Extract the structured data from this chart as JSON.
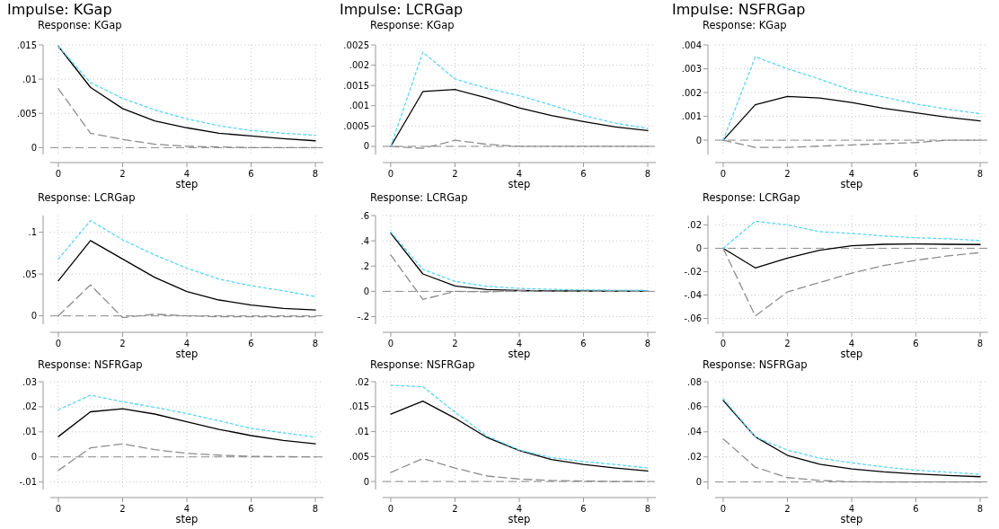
{
  "chart_data": [
    {
      "type": "line",
      "title": "Impulse: KGap",
      "subtitle": "Response: KGap",
      "xlabel": "step",
      "x": [
        0,
        1,
        2,
        3,
        4,
        5,
        6,
        7,
        8
      ],
      "xlim": [
        -0.25,
        8.25
      ],
      "xticks": [
        0,
        2,
        4,
        6,
        8
      ],
      "ylim": [
        -0.001,
        0.015
      ],
      "yticks": [
        {
          "value": 0,
          "label": "0"
        },
        {
          "value": 0.005,
          "label": ".005"
        },
        {
          "value": 0.01,
          "label": ".01"
        },
        {
          "value": 0.015,
          "label": ".015"
        }
      ],
      "grid": true,
      "marker": "none",
      "ref_lines": [
        {
          "axis": "y",
          "value": 0,
          "color": "#8c8c8c",
          "line_style": "dashed"
        }
      ],
      "series": [
        {
          "color": "#000000",
          "line_style": "solid",
          "values": [
            0.0148,
            0.0088,
            0.0057,
            0.0039,
            0.0029,
            0.0021,
            0.0017,
            0.0013,
            0.001
          ]
        },
        {
          "color": "#8c8c8c",
          "line_style": "dashed",
          "values": [
            0.0086,
            0.0021,
            0.0012,
            0.0005,
            0.0002,
            0.0001,
            0,
            0,
            0
          ]
        },
        {
          "color": "#5cd6f2",
          "line_style": "dotted",
          "values": [
            0.0148,
            0.0095,
            0.0072,
            0.0055,
            0.0042,
            0.0032,
            0.0025,
            0.0021,
            0.0018
          ]
        }
      ]
    },
    {
      "type": "line",
      "title": "Impulse: LCRGap",
      "subtitle": "Response: KGap",
      "xlabel": "step",
      "x": [
        0,
        1,
        2,
        3,
        4,
        5,
        6,
        7,
        8
      ],
      "xlim": [
        -0.25,
        8.25
      ],
      "xticks": [
        0,
        2,
        4,
        6,
        8
      ],
      "ylim": [
        -0.0002,
        0.0025
      ],
      "yticks": [
        {
          "value": 0,
          "label": "0"
        },
        {
          "value": 0.0005,
          "label": ".0005"
        },
        {
          "value": 0.001,
          "label": ".001"
        },
        {
          "value": 0.0015,
          "label": ".0015"
        },
        {
          "value": 0.002,
          "label": ".002"
        },
        {
          "value": 0.0025,
          "label": ".0025"
        }
      ],
      "grid": true,
      "marker": "none",
      "ref_lines": [
        {
          "axis": "y",
          "value": 0,
          "color": "#8c8c8c",
          "line_style": "dashed"
        }
      ],
      "series": [
        {
          "color": "#000000",
          "line_style": "solid",
          "values": [
            0,
            0.00135,
            0.0014,
            0.00119,
            0.00095,
            0.00076,
            0.00061,
            0.00048,
            0.00039
          ]
        },
        {
          "color": "#8c8c8c",
          "line_style": "dashed",
          "values": [
            0,
            -5e-05,
            0.00015,
            5e-05,
            0,
            0,
            0,
            0,
            0
          ]
        },
        {
          "color": "#5cd6f2",
          "line_style": "dotted",
          "values": [
            0,
            0.00232,
            0.00166,
            0.00143,
            0.00125,
            0.00102,
            0.00076,
            0.00057,
            0.00044
          ]
        }
      ]
    },
    {
      "type": "line",
      "title": "Impulse: NSFRGap",
      "subtitle": "Response: KGap",
      "xlabel": "step",
      "x": [
        0,
        1,
        2,
        3,
        4,
        5,
        6,
        7,
        8
      ],
      "xlim": [
        -0.25,
        8.25
      ],
      "xticks": [
        0,
        2,
        4,
        6,
        8
      ],
      "ylim": [
        -0.0006,
        0.004
      ],
      "yticks": [
        {
          "value": 0,
          "label": "0"
        },
        {
          "value": 0.001,
          "label": ".001"
        },
        {
          "value": 0.002,
          "label": ".002"
        },
        {
          "value": 0.003,
          "label": ".003"
        },
        {
          "value": 0.004,
          "label": ".004"
        }
      ],
      "grid": true,
      "marker": "none",
      "ref_lines": [
        {
          "axis": "y",
          "value": 0,
          "color": "#8c8c8c",
          "line_style": "dashed"
        }
      ],
      "series": [
        {
          "color": "#000000",
          "line_style": "solid",
          "values": [
            0,
            0.00149,
            0.00184,
            0.00177,
            0.00158,
            0.00134,
            0.00115,
            0.00096,
            0.00081
          ]
        },
        {
          "color": "#8c8c8c",
          "line_style": "dashed",
          "values": [
            0,
            -0.0003,
            -0.0003,
            -0.00025,
            -0.0002,
            -0.00015,
            -0.0001,
            0,
            0
          ]
        },
        {
          "color": "#5cd6f2",
          "line_style": "dotted",
          "values": [
            0,
            0.0035,
            0.003,
            0.00257,
            0.00209,
            0.00181,
            0.00152,
            0.0013,
            0.00111
          ]
        }
      ]
    },
    {
      "type": "line",
      "subtitle": "Response: LCRGap",
      "xlabel": "step",
      "x": [
        0,
        1,
        2,
        3,
        4,
        5,
        6,
        7,
        8
      ],
      "xlim": [
        -0.25,
        8.25
      ],
      "xticks": [
        0,
        2,
        4,
        6,
        8
      ],
      "ylim": [
        -0.01,
        0.12
      ],
      "yticks": [
        {
          "value": 0,
          "label": "0"
        },
        {
          "value": 0.05,
          "label": ".05"
        },
        {
          "value": 0.1,
          "label": ".1"
        }
      ],
      "grid": true,
      "marker": "none",
      "ref_lines": [
        {
          "axis": "y",
          "value": 0,
          "color": "#8c8c8c",
          "line_style": "dashed"
        }
      ],
      "series": [
        {
          "color": "#000000",
          "line_style": "solid",
          "values": [
            0.042,
            0.09,
            0.068,
            0.046,
            0.029,
            0.019,
            0.013,
            0.009,
            0.007
          ]
        },
        {
          "color": "#8c8c8c",
          "line_style": "dashed",
          "values": [
            0,
            0.037,
            -0.002,
            0.002,
            0,
            -0.001,
            -0.001,
            -0.001,
            -0.001
          ]
        },
        {
          "color": "#5cd6f2",
          "line_style": "dotted",
          "values": [
            0.068,
            0.114,
            0.091,
            0.073,
            0.057,
            0.044,
            0.036,
            0.03,
            0.023
          ]
        }
      ]
    },
    {
      "type": "line",
      "subtitle": "Response: LCRGap",
      "xlabel": "step",
      "x": [
        0,
        1,
        2,
        3,
        4,
        5,
        6,
        7,
        8
      ],
      "xlim": [
        -0.25,
        8.25
      ],
      "xticks": [
        0,
        2,
        4,
        6,
        8
      ],
      "ylim": [
        -0.26,
        0.6
      ],
      "yticks": [
        {
          "value": -0.2,
          "label": "-.2"
        },
        {
          "value": 0,
          "label": "0"
        },
        {
          "value": 0.2,
          "label": ".2"
        },
        {
          "value": 0.4,
          "label": ".4"
        },
        {
          "value": 0.6,
          "label": ".6"
        }
      ],
      "grid": true,
      "marker": "none",
      "ref_lines": [
        {
          "axis": "y",
          "value": 0,
          "color": "#8c8c8c",
          "line_style": "dashed"
        }
      ],
      "series": [
        {
          "color": "#000000",
          "line_style": "solid",
          "values": [
            0.46,
            0.138,
            0.043,
            0.014,
            0.007,
            0.004,
            0.003,
            0.002,
            0.002
          ]
        },
        {
          "color": "#8c8c8c",
          "line_style": "dashed",
          "values": [
            0.288,
            -0.064,
            0,
            -0.004,
            0.005,
            0.002,
            0.001,
            0.001,
            0
          ]
        },
        {
          "color": "#5cd6f2",
          "line_style": "dotted",
          "values": [
            0.47,
            0.174,
            0.079,
            0.04,
            0.024,
            0.016,
            0.012,
            0.009,
            0.008
          ]
        }
      ]
    },
    {
      "type": "line",
      "subtitle": "Response: LCRGap",
      "xlabel": "step",
      "x": [
        0,
        1,
        2,
        3,
        4,
        5,
        6,
        7,
        8
      ],
      "xlim": [
        -0.25,
        8.25
      ],
      "xticks": [
        0,
        2,
        4,
        6,
        8
      ],
      "ylim": [
        -0.065,
        0.028
      ],
      "yticks": [
        {
          "value": -0.06,
          "label": "-.06"
        },
        {
          "value": -0.04,
          "label": "-.04"
        },
        {
          "value": -0.02,
          "label": "-.02"
        },
        {
          "value": 0,
          "label": "0"
        },
        {
          "value": 0.02,
          "label": ".02"
        }
      ],
      "grid": true,
      "marker": "none",
      "ref_lines": [
        {
          "axis": "y",
          "value": 0,
          "color": "#8c8c8c",
          "line_style": "dashed"
        }
      ],
      "series": [
        {
          "color": "#000000",
          "line_style": "solid",
          "values": [
            0,
            -0.0168,
            -0.0085,
            -0.0017,
            0.0022,
            0.0034,
            0.0037,
            0.0034,
            0.0032
          ]
        },
        {
          "color": "#8c8c8c",
          "line_style": "dashed",
          "values": [
            0,
            -0.0579,
            -0.0374,
            -0.0293,
            -0.0213,
            -0.0147,
            -0.0103,
            -0.0065,
            -0.0037
          ]
        },
        {
          "color": "#5cd6f2",
          "line_style": "dotted",
          "values": [
            0,
            0.0231,
            0.02,
            0.0142,
            0.0127,
            0.0105,
            0.009,
            0.0081,
            0.0066
          ]
        }
      ]
    },
    {
      "type": "line",
      "subtitle": "Response: NSFRGap",
      "xlabel": "step",
      "x": [
        0,
        1,
        2,
        3,
        4,
        5,
        6,
        7,
        8
      ],
      "xlim": [
        -0.25,
        8.25
      ],
      "xticks": [
        0,
        2,
        4,
        6,
        8
      ],
      "ylim": [
        -0.013,
        0.03
      ],
      "yticks": [
        {
          "value": -0.01,
          "label": "-.01"
        },
        {
          "value": 0,
          "label": "0"
        },
        {
          "value": 0.01,
          "label": ".01"
        },
        {
          "value": 0.02,
          "label": ".02"
        },
        {
          "value": 0.03,
          "label": ".03"
        }
      ],
      "grid": true,
      "marker": "none",
      "ref_lines": [
        {
          "axis": "y",
          "value": 0,
          "color": "#8c8c8c",
          "line_style": "dashed"
        }
      ],
      "series": [
        {
          "color": "#000000",
          "line_style": "solid",
          "values": [
            0.0081,
            0.018,
            0.0192,
            0.0171,
            0.014,
            0.011,
            0.0085,
            0.0066,
            0.0052
          ]
        },
        {
          "color": "#8c8c8c",
          "line_style": "dashed",
          "values": [
            -0.0054,
            0.0036,
            0.0052,
            0.0029,
            0.0014,
            0.0007,
            0.0002,
            0.0001,
            0
          ]
        },
        {
          "color": "#5cd6f2",
          "line_style": "dotted",
          "values": [
            0.0188,
            0.0246,
            0.022,
            0.0198,
            0.0173,
            0.0144,
            0.0114,
            0.0096,
            0.0079
          ]
        }
      ]
    },
    {
      "type": "line",
      "subtitle": "Response: NSFRGap",
      "xlabel": "step",
      "x": [
        0,
        1,
        2,
        3,
        4,
        5,
        6,
        7,
        8
      ],
      "xlim": [
        -0.25,
        8.25
      ],
      "xticks": [
        0,
        2,
        4,
        6,
        8
      ],
      "ylim": [
        -0.0016,
        0.02
      ],
      "yticks": [
        {
          "value": 0,
          "label": "0"
        },
        {
          "value": 0.005,
          "label": ".005"
        },
        {
          "value": 0.01,
          "label": ".01"
        },
        {
          "value": 0.015,
          "label": ".015"
        },
        {
          "value": 0.02,
          "label": ".02"
        }
      ],
      "grid": true,
      "marker": "none",
      "ref_lines": [
        {
          "axis": "y",
          "value": 0,
          "color": "#8c8c8c",
          "line_style": "dashed"
        }
      ],
      "series": [
        {
          "color": "#000000",
          "line_style": "solid",
          "values": [
            0.0135,
            0.0161,
            0.0127,
            0.0088,
            0.0062,
            0.0044,
            0.0034,
            0.0027,
            0.0021
          ]
        },
        {
          "color": "#8c8c8c",
          "line_style": "dashed",
          "values": [
            0.0018,
            0.0046,
            0.0027,
            0.0011,
            0.0005,
            0.0002,
            0.0001,
            0,
            0
          ]
        },
        {
          "color": "#5cd6f2",
          "line_style": "dotted",
          "values": [
            0.0193,
            0.019,
            0.0139,
            0.0091,
            0.0063,
            0.0048,
            0.004,
            0.0034,
            0.0027
          ]
        }
      ]
    },
    {
      "type": "line",
      "subtitle": "Response: NSFRGap",
      "xlabel": "step",
      "x": [
        0,
        1,
        2,
        3,
        4,
        5,
        6,
        7,
        8
      ],
      "xlim": [
        -0.25,
        8.25
      ],
      "xticks": [
        0,
        2,
        4,
        6,
        8
      ],
      "ylim": [
        -0.006,
        0.08
      ],
      "yticks": [
        {
          "value": 0,
          "label": "0"
        },
        {
          "value": 0.02,
          "label": ".02"
        },
        {
          "value": 0.04,
          "label": ".04"
        },
        {
          "value": 0.06,
          "label": ".06"
        },
        {
          "value": 0.08,
          "label": ".08"
        }
      ],
      "grid": true,
      "marker": "none",
      "ref_lines": [
        {
          "axis": "y",
          "value": 0,
          "color": "#8c8c8c",
          "line_style": "dashed"
        }
      ],
      "series": [
        {
          "color": "#000000",
          "line_style": "solid",
          "values": [
            0.065,
            0.036,
            0.0212,
            0.0141,
            0.0104,
            0.008,
            0.0064,
            0.0052,
            0.0042
          ]
        },
        {
          "color": "#8c8c8c",
          "line_style": "dashed",
          "values": [
            0.0344,
            0.0118,
            0.0035,
            0.0012,
            0.0002,
            0,
            0,
            0,
            0
          ]
        },
        {
          "color": "#5cd6f2",
          "line_style": "dotted",
          "values": [
            0.0666,
            0.036,
            0.0254,
            0.019,
            0.0153,
            0.012,
            0.0094,
            0.0078,
            0.0061
          ]
        }
      ]
    }
  ]
}
